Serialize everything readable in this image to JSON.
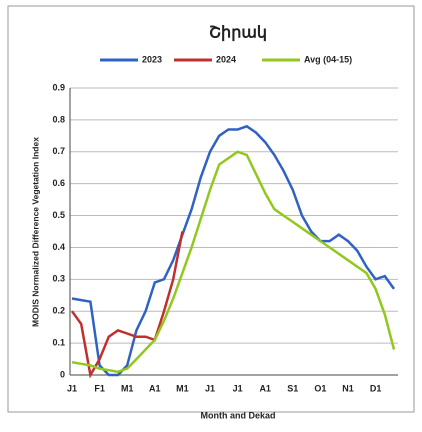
{
  "chart_data": {
    "type": "line",
    "title": "Շիրակ",
    "y_label": "MODIS Normalized Difference Vegetation Index",
    "x_label": "Month and Dekad",
    "categories": [
      "J1",
      null,
      null,
      "F1",
      null,
      null,
      "M1",
      null,
      null,
      "A1",
      null,
      null,
      "M1",
      null,
      null,
      "J1",
      null,
      null,
      "J1",
      null,
      null,
      "A1",
      null,
      null,
      "S1",
      null,
      null,
      "O1",
      null,
      null,
      "N1",
      null,
      null,
      "D1",
      null,
      null
    ],
    "series": [
      {
        "name": "2023",
        "color": "#2f62c2",
        "values": [
          0.24,
          0.235,
          0.23,
          0.03,
          0,
          0,
          0.03,
          0.14,
          0.2,
          0.29,
          0.3,
          0.36,
          0.44,
          0.52,
          0.62,
          0.7,
          0.75,
          0.77,
          0.77,
          0.78,
          0.76,
          0.73,
          0.69,
          0.64,
          0.58,
          0.5,
          0.45,
          0.42,
          0.42,
          0.44,
          0.42,
          0.39,
          0.34,
          0.3,
          0.31,
          0.27
        ]
      },
      {
        "name": "2024",
        "color": "#c0302e",
        "values": [
          0.2,
          0.16,
          0,
          0.05,
          0.12,
          0.14,
          0.13,
          0.12,
          0.12,
          0.11,
          0.2,
          0.3,
          0.45,
          null,
          null,
          null,
          null,
          null,
          null,
          null,
          null,
          null,
          null,
          null,
          null,
          null,
          null,
          null,
          null,
          null,
          null,
          null,
          null,
          null,
          null,
          null
        ]
      },
      {
        "name": "Avg (04-15)",
        "color": "#92c81e",
        "values": [
          0.04,
          0.035,
          0.03,
          0.02,
          0.015,
          0.01,
          0.02,
          0.05,
          0.08,
          0.11,
          0.17,
          0.24,
          0.32,
          0.4,
          0.49,
          0.58,
          0.66,
          0.68,
          0.7,
          0.69,
          0.63,
          0.57,
          0.52,
          0.5,
          0.48,
          0.46,
          0.44,
          0.42,
          0.4,
          0.38,
          0.36,
          0.34,
          0.32,
          0.27,
          0.19,
          0.08
        ]
      }
    ],
    "ylim": [
      0,
      0.9
    ],
    "yticks": [
      0,
      0.1,
      0.2,
      0.3,
      0.4,
      0.5,
      0.6,
      0.7,
      0.8,
      0.9
    ],
    "grid": true,
    "legend": "top"
  }
}
